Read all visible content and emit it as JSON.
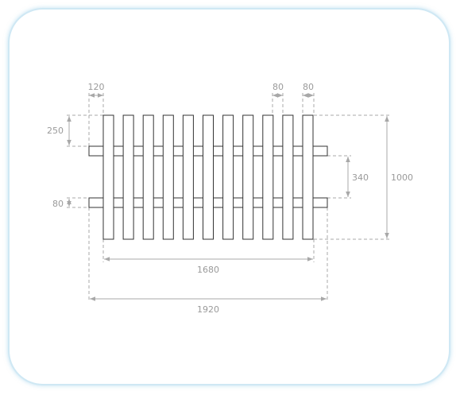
{
  "colors": {
    "outline": "#333333",
    "dimension": "#a8a8a8",
    "card_border": "#cfe8f4"
  },
  "dimensions": {
    "picket_width": "120",
    "picket_gap_a": "80",
    "picket_gap_b": "80",
    "top_offset": "250",
    "rail_height": "80",
    "rail_spacing": "340",
    "total_height": "1000",
    "picket_span": "1680",
    "total_width": "1920"
  }
}
